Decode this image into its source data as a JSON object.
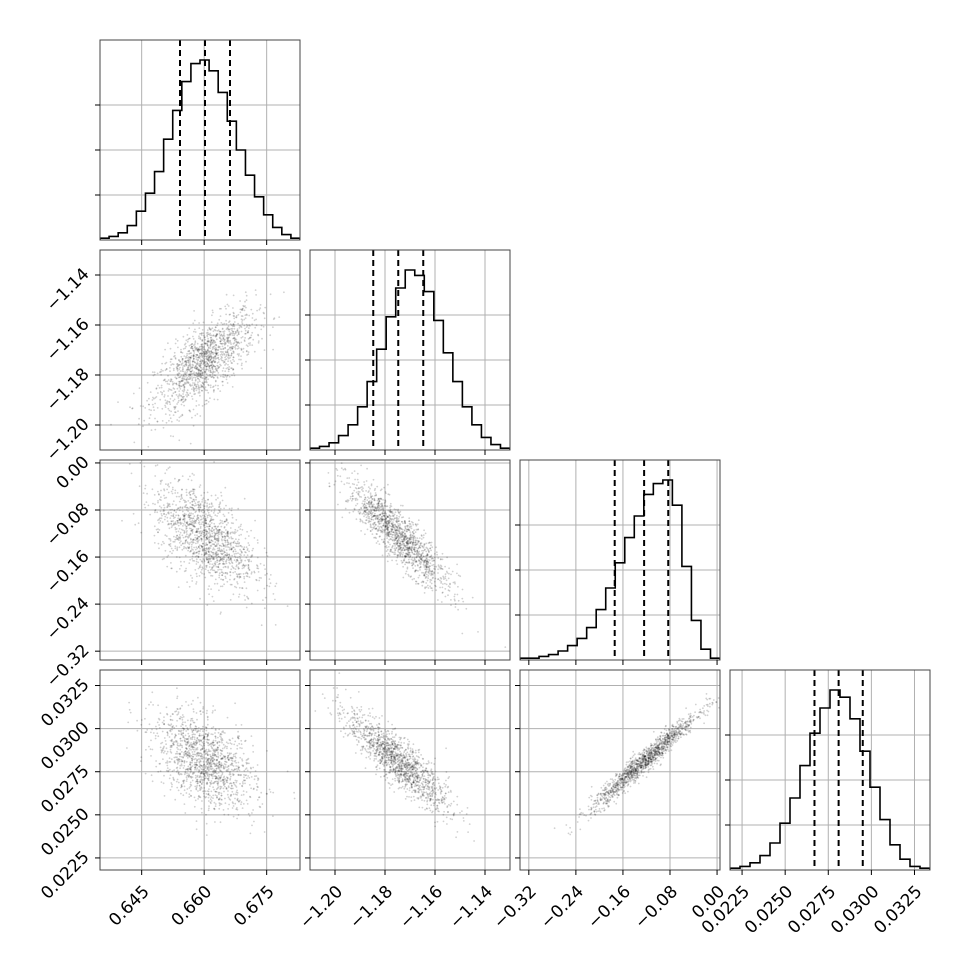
{
  "chart_data": {
    "type": "corner",
    "parameters": [
      {
        "range": [
          0.635,
          0.683
        ],
        "ticks": [
          "0.645",
          "0.660",
          "0.675"
        ],
        "tick_values": [
          0.645,
          0.66,
          0.675
        ]
      },
      {
        "range": [
          -1.21,
          -1.13
        ],
        "ticks": [
          "−1.20",
          "−1.18",
          "−1.16",
          "−1.14"
        ],
        "tick_values": [
          -1.2,
          -1.18,
          -1.16,
          -1.14
        ]
      },
      {
        "range": [
          -0.335,
          0.005
        ],
        "ticks": [
          "−0.32",
          "−0.24",
          "−0.16",
          "−0.08",
          "0.00"
        ],
        "tick_values": [
          -0.32,
          -0.24,
          -0.16,
          -0.08,
          0.0
        ]
      },
      {
        "range": [
          0.0218,
          0.0334
        ],
        "ticks": [
          "0.0225",
          "0.0250",
          "0.0275",
          "0.0300",
          "0.0325"
        ],
        "tick_values": [
          0.0225,
          0.025,
          0.0275,
          0.03,
          0.0325
        ]
      }
    ],
    "quantiles": [
      [
        0.6542,
        0.6602,
        0.6662
      ],
      [
        -1.1847,
        -1.1747,
        -1.1647
      ],
      [
        -0.174,
        -0.124,
        -0.083
      ],
      [
        0.0267,
        0.0281,
        0.0295
      ]
    ],
    "histograms": [
      [
        1,
        2,
        4,
        8,
        16,
        26,
        38,
        56,
        72,
        88,
        98,
        100,
        94,
        82,
        66,
        50,
        36,
        24,
        14,
        7,
        3,
        1
      ],
      [
        1,
        2,
        4,
        8,
        14,
        24,
        38,
        56,
        74,
        90,
        100,
        97,
        88,
        72,
        54,
        38,
        24,
        14,
        7,
        3,
        1
      ],
      [
        1,
        1,
        2,
        3,
        5,
        8,
        12,
        18,
        28,
        40,
        54,
        68,
        80,
        92,
        98,
        100,
        86,
        52,
        22,
        6,
        1
      ],
      [
        1,
        2,
        4,
        8,
        15,
        26,
        40,
        58,
        76,
        90,
        100,
        96,
        84,
        66,
        46,
        28,
        14,
        6,
        2,
        1
      ]
    ],
    "correlations": {
      "1_0": 0.7,
      "2_0": -0.55,
      "2_1": -0.88,
      "3_0": -0.45,
      "3_1": -0.86,
      "3_2": 0.97
    },
    "sigmas": [
      0.006,
      0.01,
      0.045,
      0.0014
    ],
    "grid": true
  }
}
